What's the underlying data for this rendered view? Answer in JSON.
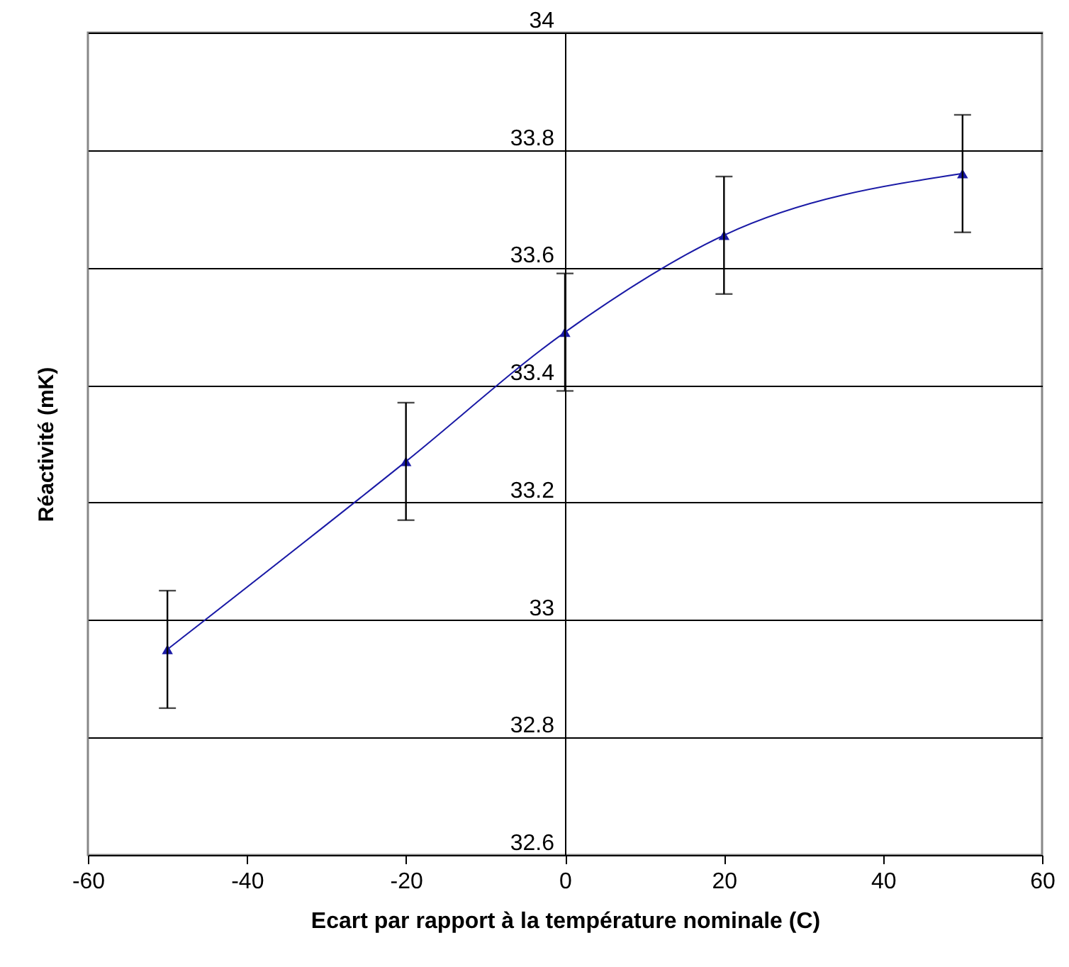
{
  "chart_data": {
    "type": "line",
    "xlabel": "Ecart par rapport à la température nominale (C)",
    "ylabel": "Réactivité (mK)",
    "x": [
      -50,
      -20,
      0,
      20,
      50
    ],
    "series": [
      {
        "color": "#1a1aa6",
        "values": [
          32.95,
          33.27,
          33.49,
          33.655,
          33.76
        ],
        "errors": [
          0.1,
          0.1,
          0.1,
          0.1,
          0.1
        ]
      }
    ],
    "xlim": [
      -60,
      60
    ],
    "xticks": [
      -60,
      -40,
      -20,
      0,
      20,
      40,
      60
    ],
    "ylim": [
      32.6,
      34
    ],
    "yticks": [
      32.6,
      32.8,
      33,
      33.2,
      33.4,
      33.6,
      33.8,
      34
    ],
    "grid": "y",
    "marker": "triangle",
    "line_style": "solid"
  }
}
